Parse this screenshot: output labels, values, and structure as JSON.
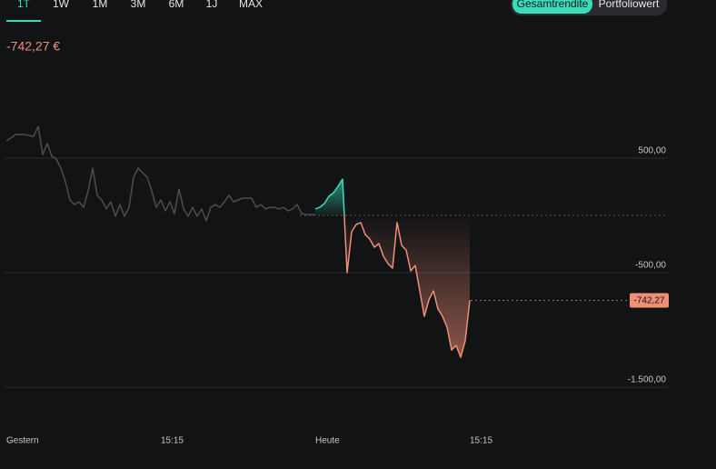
{
  "tabs": [
    "1T",
    "1W",
    "1M",
    "3M",
    "6M",
    "1J",
    "MAX"
  ],
  "toggle": [
    "Gesamtrendite",
    "Portfoliowert"
  ],
  "headline": "-742,27 €",
  "chart_data": {
    "type": "line",
    "categories": [
      "Gestern",
      null,
      null,
      null,
      null,
      null,
      null,
      null,
      null,
      null,
      null,
      null,
      null,
      null,
      null,
      null,
      null,
      null,
      null,
      null,
      null,
      null,
      null,
      null,
      null,
      null,
      null,
      null,
      null,
      null,
      null,
      null,
      null,
      null,
      "15:15",
      null,
      null,
      null,
      null,
      null,
      null,
      null,
      null,
      null,
      null,
      null,
      null,
      null,
      null,
      null,
      null,
      null,
      null,
      null,
      null,
      null,
      null,
      null,
      null,
      null,
      null,
      null,
      null,
      null,
      null,
      null,
      null,
      null,
      "Heute",
      null,
      null,
      null,
      null,
      null,
      null,
      null,
      null,
      null,
      null,
      null,
      null,
      null,
      null,
      null,
      null,
      null,
      null,
      null,
      null,
      null,
      null,
      null,
      null,
      null,
      null,
      null,
      null,
      null,
      null,
      null,
      null,
      null,
      "15:15"
    ],
    "series": [
      {
        "color": "#4d4d4f",
        "values": [
          651,
          675,
          706,
          706,
          706,
          698,
          690,
          778,
          532,
          627,
          516,
          492,
          413,
          294,
          135,
          95,
          119,
          71,
          214,
          413,
          175,
          135,
          56,
          119,
          -8,
          95,
          -8,
          71,
          333,
          413,
          373,
          333,
          214,
          71,
          135,
          40,
          119,
          16,
          230,
          56,
          -8,
          71,
          -8,
          56,
          -48,
          71,
          95,
          71,
          119,
          175,
          119,
          135,
          151,
          151,
          151,
          71,
          95,
          56,
          71,
          71,
          56,
          71,
          40,
          56,
          95,
          16,
          8,
          8,
          8,
          null,
          null,
          null,
          null,
          null,
          null,
          null,
          null,
          null,
          null,
          null,
          null,
          null,
          null,
          null,
          null,
          null,
          null,
          null,
          null,
          null,
          null,
          null,
          null,
          null,
          null,
          null,
          null,
          null,
          null,
          null,
          null,
          null,
          null
        ]
      },
      {
        "color_up": "#3ddbb9",
        "color_down": "#f08f78",
        "values": [
          null,
          null,
          null,
          null,
          null,
          null,
          null,
          null,
          null,
          null,
          null,
          null,
          null,
          null,
          null,
          null,
          null,
          null,
          null,
          null,
          null,
          null,
          null,
          null,
          null,
          null,
          null,
          null,
          null,
          null,
          null,
          null,
          null,
          null,
          null,
          null,
          null,
          null,
          null,
          null,
          null,
          null,
          null,
          null,
          null,
          null,
          null,
          null,
          null,
          null,
          null,
          null,
          null,
          null,
          null,
          null,
          null,
          null,
          null,
          null,
          null,
          null,
          null,
          null,
          null,
          null,
          null,
          null,
          56,
          71,
          103,
          167,
          198,
          254,
          317,
          -500,
          -143,
          -79,
          -63,
          -167,
          -206,
          -278,
          -246,
          -357,
          -421,
          -460,
          -63,
          -262,
          -302,
          -484,
          -437,
          -659,
          -881,
          -738,
          -659,
          -817,
          -881,
          -976,
          -1175,
          -1135,
          -1238,
          -1095,
          -742.27
        ]
      }
    ],
    "current": {
      "value": -742.27,
      "label": "-742,27"
    },
    "ylim": [
      -1750,
      1100
    ],
    "yticks": [
      {
        "value": 500,
        "label": "500,00"
      },
      {
        "value": -500,
        "label": "-500,00"
      },
      {
        "value": -1500,
        "label": "-1.500,00"
      }
    ],
    "grid": true
  }
}
